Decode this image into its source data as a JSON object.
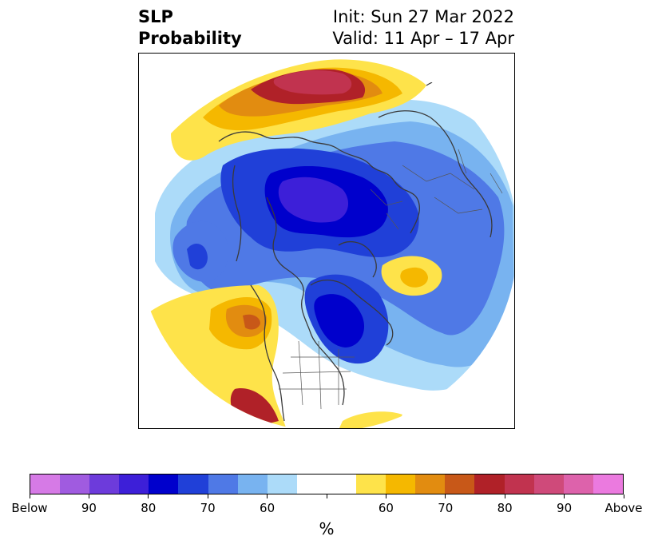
{
  "header": {
    "variable_line1": "SLP",
    "variable_line2": "Probability",
    "init_text": "Init: Sun 27 Mar 2022",
    "valid_text": "Valid: 11 Apr – 17 Apr"
  },
  "colorbar": {
    "colors": [
      "#d67ae6",
      "#a05be0",
      "#6d3bdb",
      "#3d1fd8",
      "#0000cc",
      "#2040d8",
      "#4f79e6",
      "#78b3f0",
      "#acdbf9",
      "#ffffff",
      "#ffffff",
      "#fee34a",
      "#f5b800",
      "#e28c10",
      "#c85818",
      "#b02128",
      "#c1334f",
      "#cf4a7a",
      "#dd62ab",
      "#eb7adf"
    ],
    "tick_labels": [
      "Below",
      "90",
      "80",
      "70",
      "60",
      "",
      "60",
      "70",
      "80",
      "90",
      "Above"
    ],
    "unit": "%"
  },
  "map": {
    "projection": "north polar stereographic",
    "extent": "Northern Hemisphere",
    "features": [
      "coastlines",
      "country borders",
      "US state borders"
    ]
  }
}
